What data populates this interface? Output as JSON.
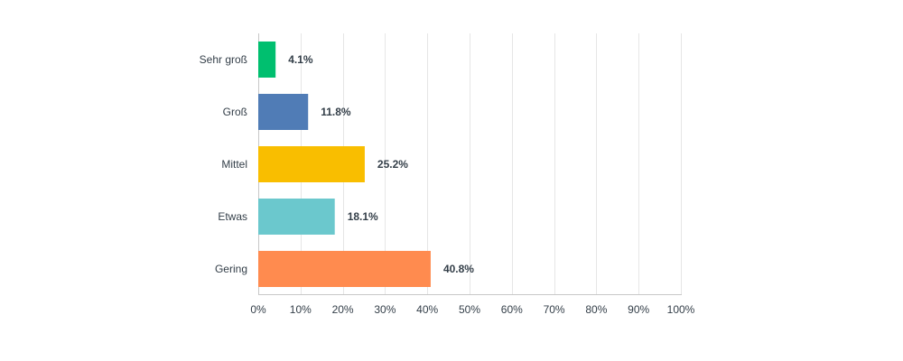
{
  "chart_data": {
    "type": "bar",
    "orientation": "horizontal",
    "categories": [
      "Sehr groß",
      "Groß",
      "Mittel",
      "Etwas",
      "Gering"
    ],
    "values": [
      4.1,
      11.8,
      25.2,
      18.1,
      40.8
    ],
    "value_labels": [
      "4.1%",
      "11.8%",
      "25.2%",
      "18.1%",
      "40.8%"
    ],
    "bar_colors": [
      "#00bf6f",
      "#507cb6",
      "#f9be00",
      "#6bc8cd",
      "#ff8b4f"
    ],
    "x_ticks": [
      "0%",
      "10%",
      "20%",
      "30%",
      "40%",
      "50%",
      "60%",
      "70%",
      "80%",
      "90%",
      "100%"
    ],
    "xlim": [
      0,
      100
    ],
    "grid": true,
    "title": "",
    "xlabel": "",
    "ylabel": ""
  }
}
